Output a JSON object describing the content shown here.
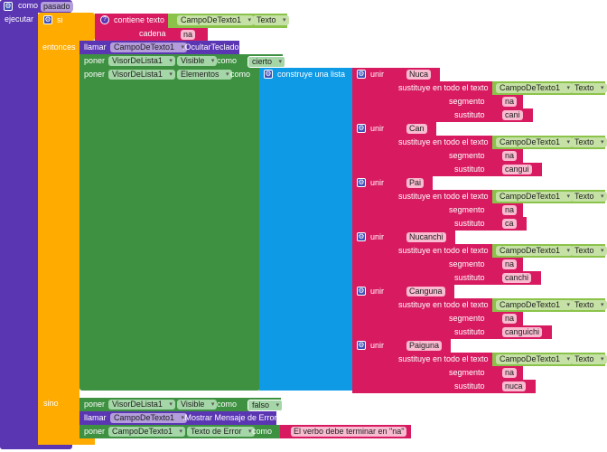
{
  "procedure": {
    "keyword": "como",
    "name": "pasado",
    "do_label": "ejecutar"
  },
  "if_block": {
    "if_label": "si",
    "then_label": "entonces",
    "else_label": "sino"
  },
  "condition": {
    "label": "contiene texto",
    "component": "CampoDeTexto1",
    "property": "Texto",
    "piece_label": "cadena",
    "piece_value": "na"
  },
  "then": {
    "call_hide": {
      "verb": "llamar",
      "component": "CampoDeTexto1",
      "method": ".OcultarTeclado"
    },
    "set_visible": {
      "verb": "poner",
      "component": "VisorDeLista1",
      "property": "Visible",
      "to": "como",
      "value": "cierto"
    },
    "set_elements": {
      "verb": "poner",
      "component": "VisorDeLista1",
      "property": "Elementos",
      "to": "como"
    },
    "make_list": "construye una lista",
    "join_label": "unir",
    "replace_label": "sustituye en todo el texto",
    "segment_label": "segmento",
    "replacement_label": "sustituto",
    "items": [
      {
        "prefix": "Nuca",
        "component": "CampoDeTexto1",
        "property": "Texto",
        "segment": "na",
        "replacement": "cani"
      },
      {
        "prefix": "Can",
        "component": "CampoDeTexto1",
        "property": "Texto",
        "segment": "na",
        "replacement": "cangui"
      },
      {
        "prefix": "Pai",
        "component": "CampoDeTexto1",
        "property": "Texto",
        "segment": "na",
        "replacement": "ca"
      },
      {
        "prefix": "Nucanchi",
        "component": "CampoDeTexto1",
        "property": "Texto",
        "segment": "na",
        "replacement": "canchi"
      },
      {
        "prefix": "Canguna",
        "component": "CampoDeTexto1",
        "property": "Texto",
        "segment": "na",
        "replacement": "canguichi"
      },
      {
        "prefix": "Paiguna",
        "component": "CampoDeTexto1",
        "property": "Texto",
        "segment": "na",
        "replacement": "nuca"
      }
    ]
  },
  "else": {
    "set_visible": {
      "verb": "poner",
      "component": "VisorDeLista1",
      "property": "Visible",
      "to": "como",
      "value": "falso"
    },
    "call_error": {
      "verb": "llamar",
      "component": "CampoDeTexto1",
      "method": ".Mostrar Mensaje de Error"
    },
    "set_error": {
      "verb": "poner",
      "component": "CampoDeTexto1",
      "property": "Texto de Error",
      "to": "como",
      "value": "El verbo debe terminar en \"na\""
    }
  }
}
